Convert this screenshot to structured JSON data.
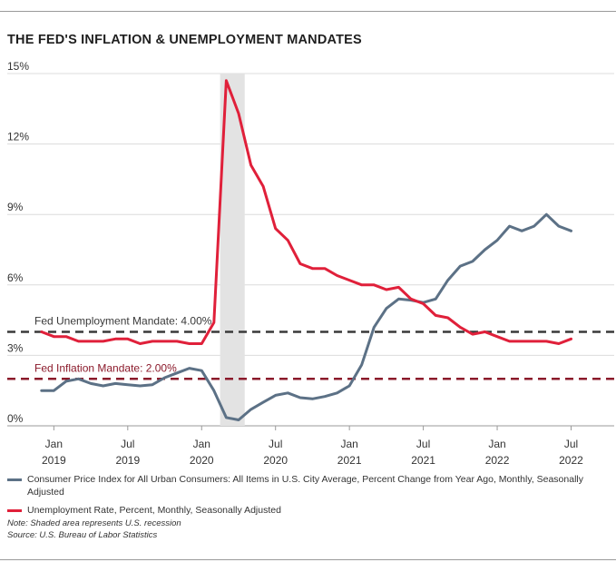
{
  "title": "THE FED'S INFLATION & UNEMPLOYMENT MANDATES",
  "chart_data": {
    "type": "line",
    "x_unit": "months since Jan 2019 (0 = Jan 2019)",
    "y_unit": "percent",
    "ylim": [
      0,
      15
    ],
    "xlim": [
      -1.5,
      45.5
    ],
    "y_ticks": [
      {
        "value": 0,
        "label": "0%"
      },
      {
        "value": 3,
        "label": "3%"
      },
      {
        "value": 6,
        "label": "6%"
      },
      {
        "value": 9,
        "label": "9%"
      },
      {
        "value": 12,
        "label": "12%"
      },
      {
        "value": 15,
        "label": "15%"
      }
    ],
    "x_ticks": [
      {
        "value": 0,
        "month": "Jan",
        "year": "2019"
      },
      {
        "value": 6,
        "month": "Jul",
        "year": "2019"
      },
      {
        "value": 12,
        "month": "Jan",
        "year": "2020"
      },
      {
        "value": 18,
        "month": "Jul",
        "year": "2020"
      },
      {
        "value": 24,
        "month": "Jan",
        "year": "2021"
      },
      {
        "value": 30,
        "month": "Jul",
        "year": "2021"
      },
      {
        "value": 36,
        "month": "Jan",
        "year": "2022"
      },
      {
        "value": 42,
        "month": "Jul",
        "year": "2022"
      }
    ],
    "recession": {
      "start": 13.5,
      "end": 15.5
    },
    "mandates": [
      {
        "name": "unemployment",
        "label": "Fed Unemployment Mandate: 4.00%",
        "value": 4.0,
        "color": "#3a3a3a"
      },
      {
        "name": "inflation",
        "label": "Fed Inflation Mandate: 2.00%",
        "value": 2.0,
        "color": "#8b1a2b"
      }
    ],
    "series": [
      {
        "name": "cpi",
        "label": "Consumer Price Index for All Urban Consumers: All Items in U.S. City Average, Percent Change from Year Ago, Monthly, Seasonally Adjusted",
        "color": "#5c7186",
        "x0": -1,
        "values": [
          1.5,
          1.5,
          1.9,
          2.0,
          1.8,
          1.7,
          1.8,
          1.75,
          1.7,
          1.75,
          2.05,
          2.25,
          2.45,
          2.35,
          1.5,
          0.35,
          0.25,
          0.7,
          1.0,
          1.3,
          1.4,
          1.2,
          1.15,
          1.25,
          1.4,
          1.7,
          2.6,
          4.2,
          5.0,
          5.4,
          5.35,
          5.25,
          5.4,
          6.2,
          6.8,
          7.0,
          7.5,
          7.9,
          8.5,
          8.3,
          8.5,
          9.0,
          8.5,
          8.3
        ]
      },
      {
        "name": "unemployment",
        "label": "Unemployment Rate, Percent, Monthly, Seasonally Adjusted",
        "color": "#e0203a",
        "x0": -1,
        "values": [
          4.0,
          3.8,
          3.8,
          3.6,
          3.6,
          3.6,
          3.7,
          3.7,
          3.5,
          3.6,
          3.6,
          3.6,
          3.5,
          3.5,
          4.4,
          14.7,
          13.3,
          11.1,
          10.2,
          8.4,
          7.9,
          6.9,
          6.7,
          6.7,
          6.4,
          6.2,
          6.0,
          6.0,
          5.8,
          5.9,
          5.4,
          5.2,
          4.7,
          4.6,
          4.2,
          3.9,
          4.0,
          3.8,
          3.6,
          3.6,
          3.6,
          3.6,
          3.5,
          3.7
        ]
      }
    ]
  },
  "notes": {
    "shading": "Note: Shaded area represents U.S. recession",
    "source": "Source: U.S. Bureau of Labor Statistics"
  }
}
